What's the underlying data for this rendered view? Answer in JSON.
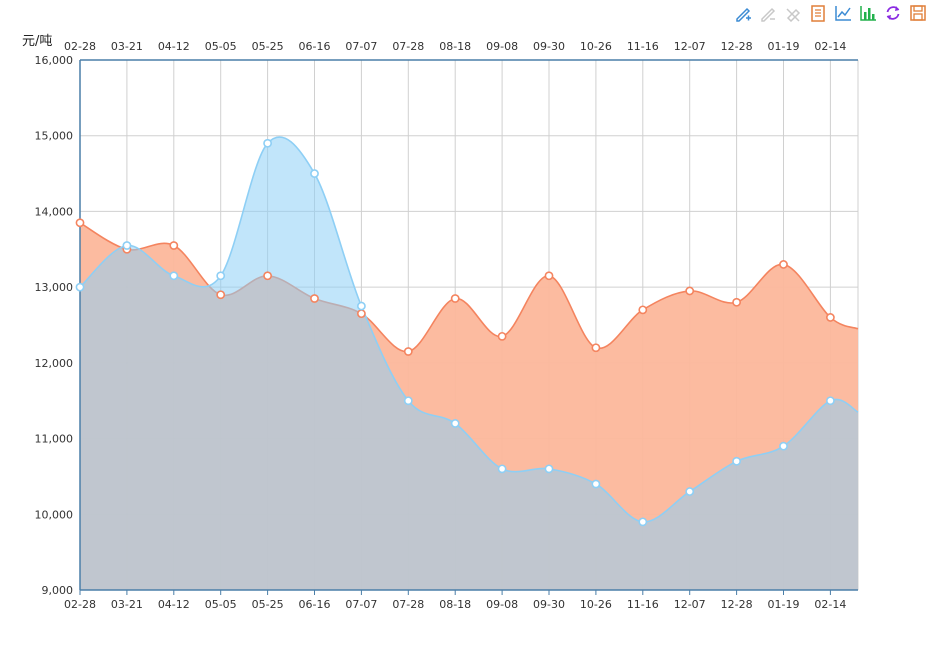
{
  "toolbox": [
    {
      "name": "mark-icon",
      "color": "#3b8bd4"
    },
    {
      "name": "mark-undo-icon",
      "color": "#c8c8c8"
    },
    {
      "name": "mark-clear-icon",
      "color": "#c8c8c8"
    },
    {
      "name": "data-view-icon",
      "color": "#e07f39"
    },
    {
      "name": "line-chart-icon",
      "color": "#3b8bd4"
    },
    {
      "name": "bar-chart-icon",
      "color": "#22b14c"
    },
    {
      "name": "restore-icon",
      "color": "#8a2be2"
    },
    {
      "name": "save-image-icon",
      "color": "#e07f39"
    }
  ],
  "chart_data": {
    "type": "area",
    "ylabel": "元/吨",
    "ylim": [
      9000,
      16000
    ],
    "y_ticks": [
      "9,000",
      "10,000",
      "11,000",
      "12,000",
      "13,000",
      "14,000",
      "15,000",
      "16,000"
    ],
    "categories": [
      "02-28",
      "03-21",
      "04-12",
      "05-05",
      "05-25",
      "06-16",
      "07-07",
      "07-28",
      "08-18",
      "09-08",
      "09-30",
      "10-26",
      "11-16",
      "12-07",
      "12-28",
      "01-19",
      "02-14"
    ],
    "grid": true,
    "series": [
      {
        "color": "#f4845f",
        "values": [
          13850,
          13500,
          13550,
          12900,
          13150,
          12850,
          12650,
          12150,
          12850,
          12350,
          13150,
          12200,
          12700,
          12950,
          12800,
          13300,
          12600
        ],
        "end_value": 12450
      },
      {
        "color": "#8ecff5",
        "values": [
          13000,
          13550,
          13150,
          13150,
          14900,
          14500,
          12750,
          11500,
          11200,
          10600,
          10600,
          10400,
          9900,
          10300,
          10700,
          10900,
          11500
        ],
        "end_value": 11350
      }
    ]
  }
}
